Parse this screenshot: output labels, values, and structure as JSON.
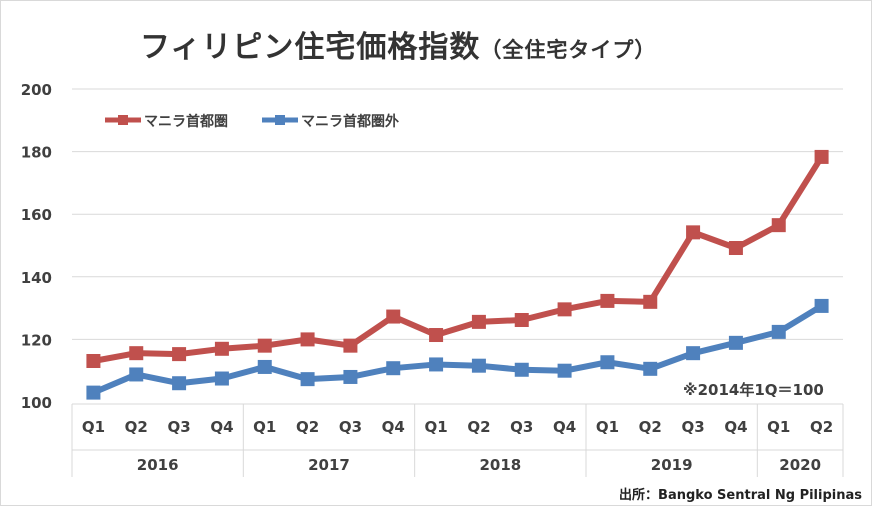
{
  "title": "フィリピン住宅価格指数",
  "subtitle": "（全住宅タイプ）",
  "note": "※2014年1Q＝100",
  "source": "出所：Bangko Sentral Ng Pilipinas",
  "chart_data": {
    "type": "line",
    "title": "フィリピン住宅価格指数（全住宅タイプ）",
    "categories": [
      "Q1",
      "Q2",
      "Q3",
      "Q4",
      "Q1",
      "Q2",
      "Q3",
      "Q4",
      "Q1",
      "Q2",
      "Q3",
      "Q4",
      "Q1",
      "Q2",
      "Q3",
      "Q4",
      "Q1",
      "Q2"
    ],
    "years": [
      {
        "label": "2016",
        "quarters": 4
      },
      {
        "label": "2017",
        "quarters": 4
      },
      {
        "label": "2018",
        "quarters": 4
      },
      {
        "label": "2019",
        "quarters": 4
      },
      {
        "label": "2020",
        "quarters": 2
      }
    ],
    "ylim": [
      100,
      200
    ],
    "yticks": [
      100,
      120,
      140,
      160,
      180,
      200
    ],
    "grid": true,
    "legend_position": "top-left",
    "series": [
      {
        "name": "マニラ首都圏",
        "color": "#c0504d",
        "values": [
          113.1,
          115.6,
          115.3,
          117.0,
          118.0,
          120.0,
          118.0,
          127.3,
          121.4,
          125.6,
          126.2,
          129.6,
          132.3,
          132.0,
          154.2,
          149.2,
          156.5,
          178.3
        ]
      },
      {
        "name": "マニラ首都圏外",
        "color": "#4f81bd",
        "values": [
          103.0,
          108.8,
          106.0,
          107.5,
          111.2,
          107.3,
          108.0,
          110.8,
          112.0,
          111.6,
          110.3,
          110.0,
          112.7,
          110.6,
          115.6,
          118.9,
          122.4,
          130.7
        ]
      }
    ]
  }
}
